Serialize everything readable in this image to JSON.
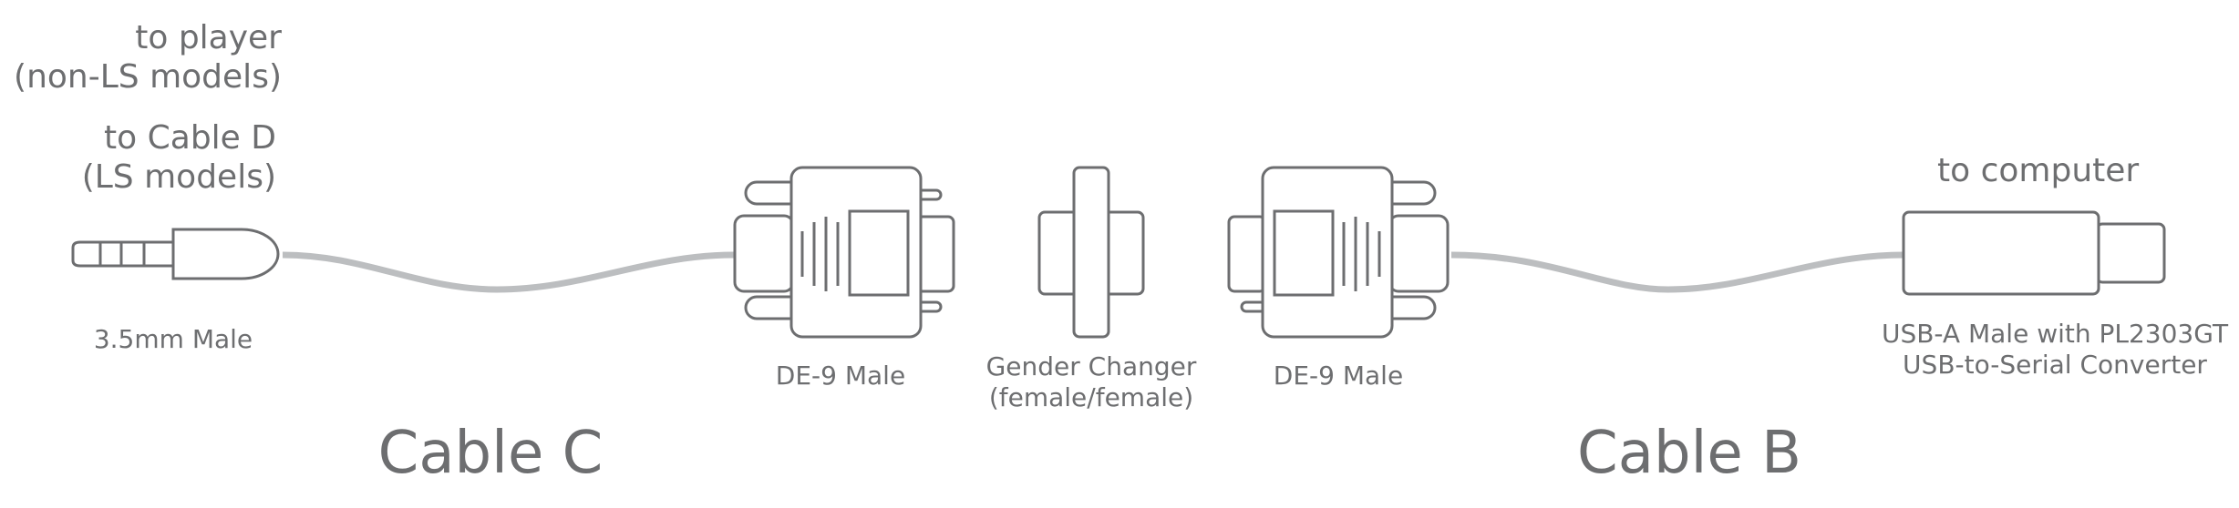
{
  "labels": {
    "to_player": [
      "to player",
      "(non-LS models)"
    ],
    "to_cable_d": [
      "to Cable D",
      "(LS models)"
    ],
    "to_computer": "to computer",
    "jack": "3.5mm Male",
    "de9_left": "DE-9 Male",
    "gender_changer": [
      "Gender Changer",
      "(female/female)"
    ],
    "de9_right": "DE-9 Male",
    "usb": [
      "USB-A Male with PL2303GT",
      "USB-to-Serial Converter"
    ],
    "cable_c": "Cable C",
    "cable_b": "Cable B"
  },
  "colors": {
    "stroke": "#6d6e70",
    "cable": "#bcbec0",
    "text": "#6d6e70",
    "background": "#ffffff"
  }
}
